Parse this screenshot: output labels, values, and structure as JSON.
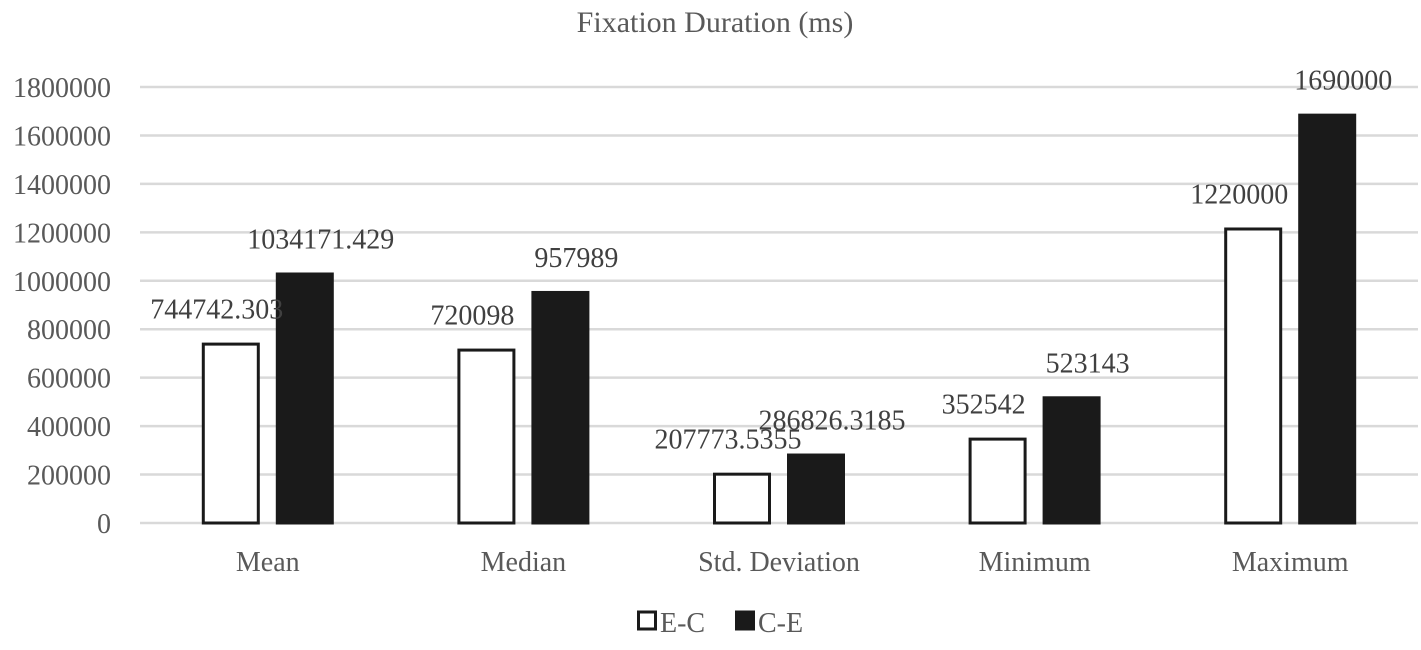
{
  "chart_data": {
    "type": "bar",
    "title": "Fixation Duration (ms)",
    "xlabel": "",
    "ylabel": "",
    "categories": [
      "Mean",
      "Median",
      "Std. Deviation",
      "Minimum",
      "Maximum"
    ],
    "series": [
      {
        "name": "E-C",
        "values": [
          744742.303,
          720098,
          207773.5355,
          352542,
          1220000
        ],
        "labels": [
          "744742.303",
          "720098",
          "207773.5355",
          "352542",
          "1220000"
        ],
        "fill": "#ffffff",
        "stroke": "#1a1a1a"
      },
      {
        "name": "C-E",
        "values": [
          1034171.429,
          957989,
          286826.3185,
          523143,
          1690000
        ],
        "labels": [
          "1034171.429",
          "957989",
          "286826.3185",
          "523143",
          "1690000"
        ],
        "fill": "#1a1a1a",
        "stroke": "#1a1a1a"
      }
    ],
    "ylim": [
      0,
      1800000
    ],
    "yticks": [
      0,
      200000,
      400000,
      600000,
      800000,
      1000000,
      1200000,
      1400000,
      1600000,
      1800000
    ],
    "ytick_labels": [
      "0",
      "200000",
      "400000",
      "600000",
      "800000",
      "1000000",
      "1200000",
      "1400000",
      "1600000",
      "1800000"
    ],
    "grid": true,
    "legend": "bottom-center",
    "colors": {
      "text": "#595959",
      "grid": "#d9d9d9",
      "label": "#404040"
    }
  }
}
